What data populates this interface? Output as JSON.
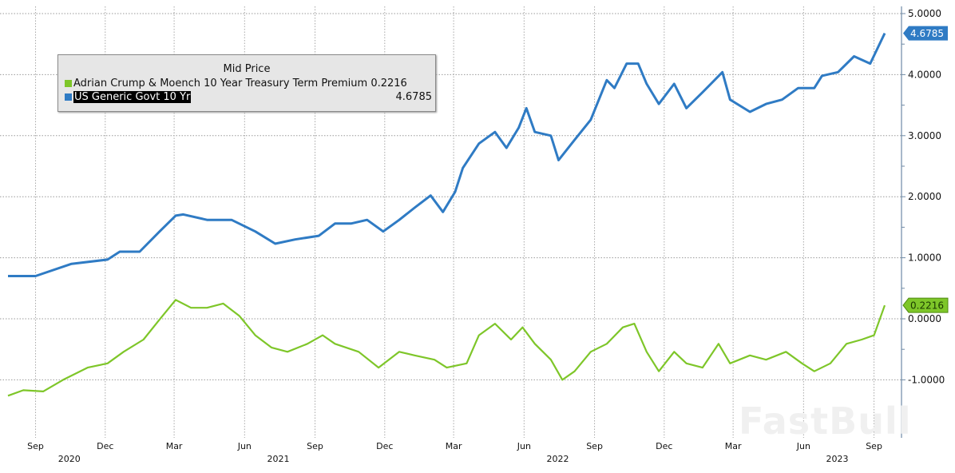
{
  "chart_data": {
    "type": "line",
    "title": "",
    "legend": {
      "title": "Mid Price",
      "placement": "top-left"
    },
    "xlabel": "",
    "ylabel": "",
    "ylim": [
      -1.9,
      5.2
    ],
    "yticks": [
      "5.0000",
      "4.0000",
      "3.0000",
      "2.0000",
      "1.0000",
      "0.0000",
      "-1.0000"
    ],
    "ytick_values": [
      5,
      4,
      3,
      2,
      1,
      0,
      -1
    ],
    "y_axis_side": "right",
    "grid": true,
    "xlim": [
      "2020-07-27",
      "2023-09-15"
    ],
    "xticks": [
      {
        "date": "2020-09-01",
        "label": "Sep"
      },
      {
        "date": "2020-12-01",
        "label": "Dec"
      },
      {
        "date": "2021-03-01",
        "label": "Mar"
      },
      {
        "date": "2021-06-01",
        "label": "Jun"
      },
      {
        "date": "2021-09-01",
        "label": "Sep"
      },
      {
        "date": "2021-12-01",
        "label": "Dec"
      },
      {
        "date": "2022-03-01",
        "label": "Mar"
      },
      {
        "date": "2022-06-01",
        "label": "Jun"
      },
      {
        "date": "2022-09-01",
        "label": "Sep"
      },
      {
        "date": "2022-12-01",
        "label": "Dec"
      },
      {
        "date": "2023-03-01",
        "label": "Mar"
      },
      {
        "date": "2023-06-01",
        "label": "Jun"
      },
      {
        "date": "2023-09-01",
        "label": "Sep"
      }
    ],
    "year_labels": [
      {
        "date": "2020-10-15",
        "label": "2020"
      },
      {
        "date": "2021-07-15",
        "label": "2021"
      },
      {
        "date": "2022-07-15",
        "label": "2022"
      },
      {
        "date": "2023-07-15",
        "label": "2023"
      }
    ],
    "series": [
      {
        "name": "Adrian Crump & Moench 10 Year Treasury Term Premium",
        "last_value": "0.2216",
        "color": "#7ec629",
        "x": [
          "2020-07-27",
          "2020-08-16",
          "2020-09-11",
          "2020-10-07",
          "2020-11-08",
          "2020-12-04",
          "2020-12-25",
          "2021-01-20",
          "2021-02-10",
          "2021-03-03",
          "2021-03-23",
          "2021-04-13",
          "2021-05-04",
          "2021-05-25",
          "2021-06-15",
          "2021-07-06",
          "2021-07-27",
          "2021-08-22",
          "2021-09-11",
          "2021-09-27",
          "2021-10-28",
          "2021-11-23",
          "2021-12-20",
          "2022-01-09",
          "2022-02-04",
          "2022-02-20",
          "2022-03-18",
          "2022-04-03",
          "2022-04-24",
          "2022-05-15",
          "2022-05-30",
          "2022-06-15",
          "2022-07-06",
          "2022-07-21",
          "2022-08-06",
          "2022-08-27",
          "2022-09-17",
          "2022-10-08",
          "2022-10-23",
          "2022-11-08",
          "2022-11-24",
          "2022-12-14",
          "2022-12-30",
          "2023-01-20",
          "2023-02-10",
          "2023-02-25",
          "2023-03-23",
          "2023-04-13",
          "2023-05-09",
          "2023-05-30",
          "2023-06-15",
          "2023-07-06",
          "2023-07-27",
          "2023-08-16",
          "2023-09-01",
          "2023-09-15"
        ],
        "values": [
          -1.26,
          -1.17,
          -1.19,
          -1.0,
          -0.8,
          -0.73,
          -0.54,
          -0.34,
          -0.01,
          0.31,
          0.18,
          0.18,
          0.25,
          0.05,
          -0.27,
          -0.47,
          -0.54,
          -0.41,
          -0.27,
          -0.41,
          -0.54,
          -0.8,
          -0.54,
          -0.6,
          -0.67,
          -0.8,
          -0.73,
          -0.27,
          -0.08,
          -0.34,
          -0.14,
          -0.41,
          -0.67,
          -1.0,
          -0.86,
          -0.54,
          -0.41,
          -0.14,
          -0.08,
          -0.54,
          -0.86,
          -0.54,
          -0.73,
          -0.8,
          -0.41,
          -0.73,
          -0.6,
          -0.67,
          -0.54,
          -0.73,
          -0.86,
          -0.73,
          -0.41,
          -0.34,
          -0.27,
          0.2216
        ]
      },
      {
        "name": "US Generic Govt 10 Yr",
        "last_value": "4.6785",
        "color": "#2f7bc4",
        "x": [
          "2020-07-27",
          "2020-09-01",
          "2020-10-18",
          "2020-12-04",
          "2020-12-20",
          "2021-01-15",
          "2021-02-10",
          "2021-03-03",
          "2021-03-13",
          "2021-04-13",
          "2021-05-15",
          "2021-06-15",
          "2021-07-11",
          "2021-08-06",
          "2021-09-06",
          "2021-09-27",
          "2021-10-18",
          "2021-11-08",
          "2021-11-29",
          "2021-12-20",
          "2022-01-09",
          "2022-01-30",
          "2022-02-15",
          "2022-03-03",
          "2022-03-13",
          "2022-04-03",
          "2022-04-24",
          "2022-05-09",
          "2022-05-25",
          "2022-06-04",
          "2022-06-15",
          "2022-07-06",
          "2022-07-16",
          "2022-08-06",
          "2022-08-27",
          "2022-09-17",
          "2022-09-27",
          "2022-10-13",
          "2022-10-28",
          "2022-11-08",
          "2022-11-24",
          "2022-12-14",
          "2022-12-30",
          "2023-01-20",
          "2023-02-15",
          "2023-02-25",
          "2023-03-23",
          "2023-04-13",
          "2023-05-04",
          "2023-05-25",
          "2023-06-15",
          "2023-06-25",
          "2023-07-16",
          "2023-08-06",
          "2023-08-27",
          "2023-09-15"
        ],
        "values": [
          0.7,
          0.7,
          0.9,
          0.97,
          1.1,
          1.1,
          1.43,
          1.69,
          1.71,
          1.62,
          1.62,
          1.43,
          1.23,
          1.3,
          1.36,
          1.56,
          1.56,
          1.62,
          1.43,
          1.62,
          1.82,
          2.02,
          1.75,
          2.08,
          2.47,
          2.87,
          3.06,
          2.8,
          3.13,
          3.45,
          3.06,
          3.0,
          2.6,
          2.93,
          3.26,
          3.91,
          3.78,
          4.18,
          4.18,
          3.85,
          3.52,
          3.85,
          3.45,
          3.71,
          4.04,
          3.59,
          3.39,
          3.52,
          3.59,
          3.78,
          3.78,
          3.98,
          4.04,
          4.3,
          4.18,
          4.6785
        ]
      }
    ]
  },
  "watermark": "FastBull"
}
